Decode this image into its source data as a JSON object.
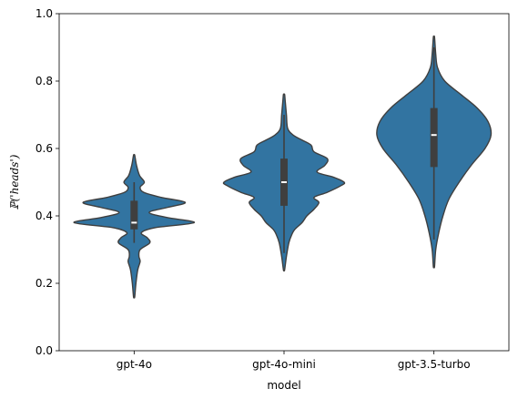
{
  "chart_data": {
    "type": "violin",
    "title": "",
    "xlabel": "model",
    "ylabel": "ℙ('heads')",
    "ylim": [
      0.0,
      1.0
    ],
    "yticks": [
      "0.0",
      "0.2",
      "0.4",
      "0.6",
      "0.8",
      "1.0"
    ],
    "grid": false,
    "legend": "none",
    "fill_color": "#3274a1",
    "edge_color": "#3f3f3f",
    "categories": [
      "gpt-4o",
      "gpt-4o-mini",
      "gpt-3.5-turbo"
    ],
    "series": [
      {
        "category": "gpt-4o",
        "min": 0.16,
        "max": 0.58,
        "q1": 0.36,
        "median": 0.38,
        "q3": 0.445,
        "whisker_low": 0.32,
        "whisker_high": 0.5,
        "density": [
          [
            0.16,
            0.01
          ],
          [
            0.2,
            0.03
          ],
          [
            0.24,
            0.06
          ],
          [
            0.265,
            0.1
          ],
          [
            0.28,
            0.08
          ],
          [
            0.3,
            0.1
          ],
          [
            0.32,
            0.26
          ],
          [
            0.335,
            0.22
          ],
          [
            0.35,
            0.12
          ],
          [
            0.365,
            0.35
          ],
          [
            0.38,
            1.0
          ],
          [
            0.395,
            0.55
          ],
          [
            0.41,
            0.25
          ],
          [
            0.425,
            0.55
          ],
          [
            0.44,
            0.85
          ],
          [
            0.455,
            0.45
          ],
          [
            0.47,
            0.16
          ],
          [
            0.485,
            0.1
          ],
          [
            0.5,
            0.17
          ],
          [
            0.52,
            0.09
          ],
          [
            0.55,
            0.04
          ],
          [
            0.58,
            0.01
          ]
        ]
      },
      {
        "category": "gpt-4o-mini",
        "min": 0.24,
        "max": 0.76,
        "q1": 0.43,
        "median": 0.5,
        "q3": 0.57,
        "whisker_low": 0.29,
        "whisker_high": 0.7,
        "density": [
          [
            0.24,
            0.01
          ],
          [
            0.28,
            0.04
          ],
          [
            0.32,
            0.08
          ],
          [
            0.345,
            0.13
          ],
          [
            0.36,
            0.18
          ],
          [
            0.38,
            0.3
          ],
          [
            0.4,
            0.38
          ],
          [
            0.42,
            0.5
          ],
          [
            0.44,
            0.58
          ],
          [
            0.455,
            0.5
          ],
          [
            0.47,
            0.72
          ],
          [
            0.49,
            0.95
          ],
          [
            0.5,
            1.0
          ],
          [
            0.515,
            0.82
          ],
          [
            0.53,
            0.55
          ],
          [
            0.55,
            0.68
          ],
          [
            0.57,
            0.72
          ],
          [
            0.59,
            0.5
          ],
          [
            0.61,
            0.45
          ],
          [
            0.625,
            0.3
          ],
          [
            0.64,
            0.15
          ],
          [
            0.66,
            0.06
          ],
          [
            0.7,
            0.04
          ],
          [
            0.74,
            0.02
          ],
          [
            0.76,
            0.01
          ]
        ]
      },
      {
        "category": "gpt-3.5-turbo",
        "min": 0.25,
        "max": 0.93,
        "q1": 0.545,
        "median": 0.64,
        "q3": 0.72,
        "whisker_low": 0.33,
        "whisker_high": 0.9,
        "density": [
          [
            0.25,
            0.01
          ],
          [
            0.3,
            0.03
          ],
          [
            0.35,
            0.08
          ],
          [
            0.4,
            0.15
          ],
          [
            0.45,
            0.25
          ],
          [
            0.5,
            0.42
          ],
          [
            0.55,
            0.62
          ],
          [
            0.6,
            0.85
          ],
          [
            0.64,
            0.95
          ],
          [
            0.68,
            0.9
          ],
          [
            0.72,
            0.72
          ],
          [
            0.76,
            0.45
          ],
          [
            0.8,
            0.18
          ],
          [
            0.84,
            0.06
          ],
          [
            0.88,
            0.03
          ],
          [
            0.93,
            0.01
          ]
        ]
      }
    ]
  }
}
